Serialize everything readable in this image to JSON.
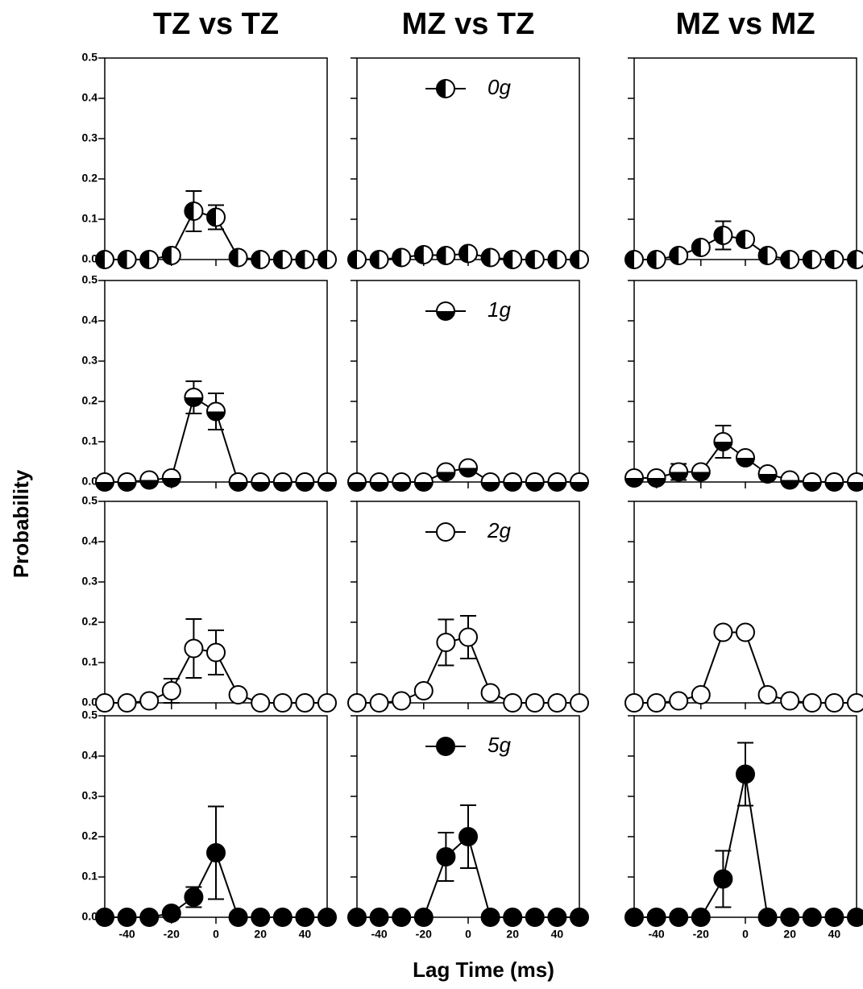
{
  "figure": {
    "y_label": "Probability",
    "x_label": "Lag Time (ms)"
  },
  "chart_data": [
    {
      "type": "line",
      "title": "TZ vs TZ",
      "x": [
        -50,
        -40,
        -30,
        -20,
        -10,
        0,
        10,
        20,
        30,
        40,
        50
      ],
      "xlim": [
        -50,
        50
      ],
      "xticks": [
        -40,
        -20,
        0,
        20,
        40
      ],
      "x_tick_labels": false,
      "ylim": [
        0,
        0.5
      ],
      "yticks": [
        {
          "value": 0,
          "label": "0.0"
        },
        0.1,
        0.2,
        0.3,
        0.4,
        0.5
      ],
      "y_tick_labels": true,
      "series": [
        {
          "marker": "half-left",
          "color": "#000000",
          "values": [
            0,
            0,
            0,
            0.01,
            0.12,
            0.105,
            0.005,
            0,
            0,
            0,
            0
          ],
          "errors": [
            null,
            null,
            null,
            null,
            0.05,
            0.03,
            null,
            null,
            null,
            null,
            null
          ]
        }
      ]
    },
    {
      "type": "line",
      "title": "MZ vs TZ",
      "x": [
        -50,
        -40,
        -30,
        -20,
        -10,
        0,
        10,
        20,
        30,
        40,
        50
      ],
      "xlim": [
        -50,
        50
      ],
      "xticks": [
        -40,
        -20,
        0,
        20,
        40
      ],
      "x_tick_labels": false,
      "ylim": [
        0,
        0.5
      ],
      "yticks": [
        0,
        0.1,
        0.2,
        0.3,
        0.4,
        0.5
      ],
      "y_tick_labels": false,
      "series": [
        {
          "name": "0g",
          "marker": "half-left",
          "color": "#000000",
          "values": [
            0,
            0,
            0.005,
            0.012,
            0.01,
            0.015,
            0.005,
            0,
            0,
            0,
            0
          ],
          "errors": [
            null,
            null,
            null,
            null,
            null,
            null,
            null,
            null,
            null,
            null,
            null
          ]
        }
      ]
    },
    {
      "type": "line",
      "title": "MZ vs MZ",
      "x": [
        -50,
        -40,
        -30,
        -20,
        -10,
        0,
        10,
        20,
        30,
        40,
        50
      ],
      "xlim": [
        -50,
        50
      ],
      "xticks": [
        -40,
        -20,
        0,
        20,
        40
      ],
      "x_tick_labels": false,
      "ylim": [
        0,
        0.5
      ],
      "yticks": [
        0,
        0.1,
        0.2,
        0.3,
        0.4,
        0.5
      ],
      "y_tick_labels": false,
      "series": [
        {
          "marker": "half-left",
          "color": "#000000",
          "values": [
            0,
            0,
            0.01,
            0.03,
            0.06,
            0.05,
            0.01,
            0,
            0,
            0,
            0
          ],
          "errors": [
            null,
            null,
            null,
            null,
            0.035,
            null,
            null,
            null,
            null,
            null,
            null
          ]
        }
      ]
    },
    {
      "type": "line",
      "x": [
        -50,
        -40,
        -30,
        -20,
        -10,
        0,
        10,
        20,
        30,
        40,
        50
      ],
      "xlim": [
        -50,
        50
      ],
      "xticks": [
        -40,
        -20,
        0,
        20,
        40
      ],
      "x_tick_labels": false,
      "ylim": [
        0,
        0.5
      ],
      "yticks": [
        {
          "value": 0,
          "label": "0.0"
        },
        0.1,
        0.2,
        0.3,
        0.4,
        0.5
      ],
      "y_tick_labels": true,
      "series": [
        {
          "marker": "half-bottom",
          "color": "#000000",
          "values": [
            0,
            0,
            0.005,
            0.01,
            0.21,
            0.175,
            0,
            0,
            0,
            0,
            0
          ],
          "errors": [
            null,
            null,
            null,
            null,
            0.04,
            0.045,
            null,
            null,
            null,
            null,
            null
          ]
        }
      ]
    },
    {
      "type": "line",
      "x": [
        -50,
        -40,
        -30,
        -20,
        -10,
        0,
        10,
        20,
        30,
        40,
        50
      ],
      "xlim": [
        -50,
        50
      ],
      "xticks": [
        -40,
        -20,
        0,
        20,
        40
      ],
      "x_tick_labels": false,
      "ylim": [
        0,
        0.5
      ],
      "yticks": [
        0,
        0.1,
        0.2,
        0.3,
        0.4,
        0.5
      ],
      "y_tick_labels": false,
      "series": [
        {
          "name": "1g",
          "marker": "half-bottom",
          "color": "#000000",
          "values": [
            0,
            0,
            0,
            0,
            0.025,
            0.035,
            0,
            0,
            0,
            0,
            0
          ],
          "errors": [
            null,
            null,
            null,
            null,
            null,
            null,
            null,
            null,
            null,
            null,
            null
          ]
        }
      ]
    },
    {
      "type": "line",
      "x": [
        -50,
        -40,
        -30,
        -20,
        -10,
        0,
        10,
        20,
        30,
        40,
        50
      ],
      "xlim": [
        -50,
        50
      ],
      "xticks": [
        -40,
        -20,
        0,
        20,
        40
      ],
      "x_tick_labels": false,
      "ylim": [
        0,
        0.5
      ],
      "yticks": [
        0,
        0.1,
        0.2,
        0.3,
        0.4,
        0.5
      ],
      "y_tick_labels": false,
      "series": [
        {
          "marker": "half-bottom",
          "color": "#000000",
          "values": [
            0.01,
            0.01,
            0.025,
            0.025,
            0.1,
            0.06,
            0.02,
            0.005,
            0,
            0,
            0
          ],
          "errors": [
            null,
            null,
            0.02,
            null,
            0.04,
            null,
            null,
            null,
            null,
            null,
            null
          ]
        }
      ]
    },
    {
      "type": "line",
      "x": [
        -50,
        -40,
        -30,
        -20,
        -10,
        0,
        10,
        20,
        30,
        40,
        50
      ],
      "xlim": [
        -50,
        50
      ],
      "xticks": [
        -40,
        -20,
        0,
        20,
        40
      ],
      "x_tick_labels": false,
      "ylim": [
        0,
        0.5
      ],
      "yticks": [
        {
          "value": 0,
          "label": "0.0"
        },
        0.1,
        0.2,
        0.3,
        0.4,
        0.5
      ],
      "y_tick_labels": true,
      "series": [
        {
          "marker": "open",
          "color": "#000000",
          "values": [
            0,
            0,
            0.005,
            0.03,
            0.135,
            0.125,
            0.02,
            0,
            0,
            0,
            0
          ],
          "errors": [
            null,
            null,
            null,
            0.03,
            0.073,
            0.055,
            null,
            null,
            null,
            null,
            null
          ]
        }
      ]
    },
    {
      "type": "line",
      "x": [
        -50,
        -40,
        -30,
        -20,
        -10,
        0,
        10,
        20,
        30,
        40,
        50
      ],
      "xlim": [
        -50,
        50
      ],
      "xticks": [
        -40,
        -20,
        0,
        20,
        40
      ],
      "x_tick_labels": false,
      "ylim": [
        0,
        0.5
      ],
      "yticks": [
        0,
        0.1,
        0.2,
        0.3,
        0.4,
        0.5
      ],
      "y_tick_labels": false,
      "series": [
        {
          "name": "2g",
          "marker": "open",
          "color": "#000000",
          "values": [
            0,
            0,
            0.005,
            0.03,
            0.15,
            0.163,
            0.025,
            0,
            0,
            0,
            0
          ],
          "errors": [
            null,
            null,
            null,
            null,
            0.057,
            0.053,
            null,
            null,
            null,
            null,
            null
          ]
        }
      ]
    },
    {
      "type": "line",
      "x": [
        -50,
        -40,
        -30,
        -20,
        -10,
        0,
        10,
        20,
        30,
        40,
        50
      ],
      "xlim": [
        -50,
        50
      ],
      "xticks": [
        -40,
        -20,
        0,
        20,
        40
      ],
      "x_tick_labels": false,
      "ylim": [
        0,
        0.5
      ],
      "yticks": [
        0,
        0.1,
        0.2,
        0.3,
        0.4,
        0.5
      ],
      "y_tick_labels": false,
      "series": [
        {
          "marker": "open",
          "color": "#000000",
          "values": [
            0,
            0,
            0.005,
            0.02,
            0.175,
            0.175,
            0.02,
            0.005,
            0,
            0,
            0
          ],
          "errors": [
            null,
            null,
            null,
            null,
            null,
            null,
            null,
            null,
            null,
            null,
            null
          ]
        }
      ]
    },
    {
      "type": "line",
      "x": [
        -50,
        -40,
        -30,
        -20,
        -10,
        0,
        10,
        20,
        30,
        40,
        50
      ],
      "xlim": [
        -50,
        50
      ],
      "xticks": [
        -40,
        -20,
        0,
        20,
        40
      ],
      "x_tick_labels": true,
      "ylim": [
        0,
        0.5
      ],
      "yticks": [
        {
          "value": 0,
          "label": "0.0"
        },
        0.1,
        0.2,
        0.3,
        0.4,
        0.5
      ],
      "y_tick_labels": true,
      "series": [
        {
          "marker": "filled",
          "color": "#000000",
          "values": [
            0,
            0,
            0,
            0.01,
            0.05,
            0.16,
            0,
            0,
            0,
            0,
            0
          ],
          "errors": [
            null,
            null,
            null,
            null,
            0.025,
            0.115,
            null,
            null,
            null,
            null,
            null
          ]
        }
      ]
    },
    {
      "type": "line",
      "x": [
        -50,
        -40,
        -30,
        -20,
        -10,
        0,
        10,
        20,
        30,
        40,
        50
      ],
      "xlim": [
        -50,
        50
      ],
      "xticks": [
        -40,
        -20,
        0,
        20,
        40
      ],
      "x_tick_labels": true,
      "ylim": [
        0,
        0.5
      ],
      "yticks": [
        0,
        0.1,
        0.2,
        0.3,
        0.4,
        0.5
      ],
      "y_tick_labels": false,
      "series": [
        {
          "name": "5g",
          "marker": "filled",
          "color": "#000000",
          "values": [
            0,
            0,
            0,
            0,
            0.15,
            0.2,
            0,
            0,
            0,
            0,
            0
          ],
          "errors": [
            null,
            null,
            null,
            null,
            0.06,
            0.078,
            null,
            null,
            null,
            null,
            null
          ]
        }
      ]
    },
    {
      "type": "line",
      "x": [
        -50,
        -40,
        -30,
        -20,
        -10,
        0,
        10,
        20,
        30,
        40,
        50
      ],
      "xlim": [
        -50,
        50
      ],
      "xticks": [
        -40,
        -20,
        0,
        20,
        40
      ],
      "x_tick_labels": true,
      "ylim": [
        0,
        0.5
      ],
      "yticks": [
        0,
        0.1,
        0.2,
        0.3,
        0.4,
        0.5
      ],
      "y_tick_labels": false,
      "series": [
        {
          "marker": "filled",
          "color": "#000000",
          "values": [
            0,
            0,
            0,
            0,
            0.095,
            0.355,
            0,
            0,
            0,
            0,
            0
          ],
          "errors": [
            null,
            null,
            null,
            null,
            0.07,
            0.078,
            null,
            null,
            null,
            null,
            null
          ]
        }
      ]
    }
  ]
}
